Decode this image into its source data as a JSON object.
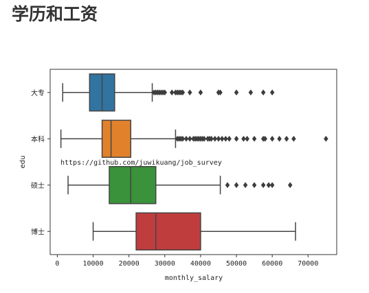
{
  "page": {
    "title": "学历和工资"
  },
  "colors": {
    "series": [
      "#3274a1",
      "#e1812c",
      "#3a923a",
      "#c03d3e"
    ],
    "line": "#444444"
  },
  "chart_data": {
    "type": "box",
    "orientation": "horizontal",
    "xlabel": "monthly_salary",
    "ylabel": "edu",
    "xlim": [
      -2000,
      78000
    ],
    "xticks": [
      0,
      10000,
      20000,
      30000,
      40000,
      50000,
      60000,
      70000
    ],
    "annotation": "https://github.com/juwikuang/job_survey",
    "grid": false,
    "categories": [
      "大专",
      "本科",
      "硕士",
      "博士"
    ],
    "boxes": [
      {
        "category": "大专",
        "whisker_low": 1500,
        "q1": 9000,
        "median": 12500,
        "q3": 16000,
        "whisker_high": 26500,
        "outliers": [
          27000,
          27500,
          28000,
          28500,
          29000,
          29500,
          30000,
          32000,
          33000,
          33500,
          34000,
          34500,
          35000,
          37000,
          40000,
          45000,
          45500,
          50000,
          54000,
          57500,
          60000
        ]
      },
      {
        "category": "本科",
        "whisker_low": 1000,
        "q1": 12500,
        "median": 15000,
        "q3": 20500,
        "whisker_high": 33000,
        "outliers": [
          33500,
          34000,
          34500,
          35000,
          36000,
          37000,
          38000,
          38500,
          39000,
          39500,
          40000,
          40500,
          41000,
          42000,
          42500,
          43000,
          44000,
          45000,
          46000,
          47000,
          48000,
          50000,
          52000,
          53000,
          55000,
          57500,
          58000,
          60000,
          62000,
          64000,
          66000,
          75000
        ]
      },
      {
        "category": "硕士",
        "whisker_low": 3000,
        "q1": 14500,
        "median": 20500,
        "q3": 27500,
        "whisker_high": 45500,
        "outliers": [
          47500,
          50000,
          52500,
          55000,
          57500,
          59000,
          60000,
          65000
        ]
      },
      {
        "category": "博士",
        "whisker_low": 10000,
        "q1": 22000,
        "median": 27500,
        "q3": 40000,
        "whisker_high": 66500,
        "outliers": []
      }
    ]
  }
}
